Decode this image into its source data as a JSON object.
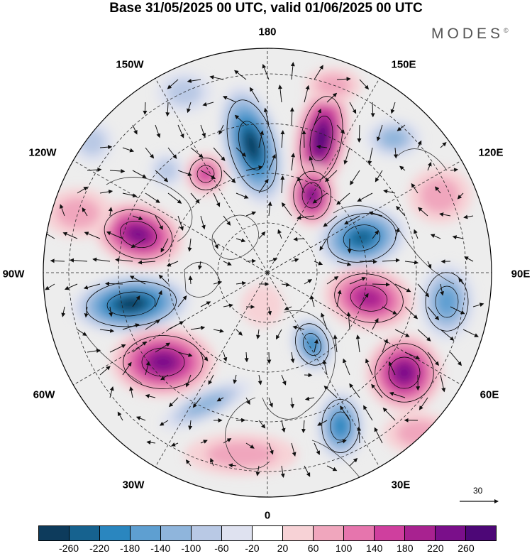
{
  "title": "Base 31/05/2025 00 UTC, valid 01/06/2025 00 UTC",
  "brand": "MODES",
  "brand_mark": "©",
  "longitude_labels": [
    "180",
    "150E",
    "120E",
    "90E",
    "60E",
    "30E",
    "0",
    "30W",
    "60W",
    "90W",
    "120W",
    "150W"
  ],
  "wind_scale": {
    "value": "30"
  },
  "colorbar": {
    "ticks": [
      "-260",
      "-220",
      "-180",
      "-140",
      "-100",
      "-60",
      "-20",
      "20",
      "60",
      "100",
      "140",
      "180",
      "220",
      "260"
    ],
    "colors": [
      "#0d3b5c",
      "#16628f",
      "#2a86bf",
      "#5e9fd1",
      "#8fb5dc",
      "#b9c9e5",
      "#dfe2f0",
      "#ffffff",
      "#f7d2d6",
      "#f0a6bd",
      "#e675ad",
      "#cf3f9e",
      "#a82290",
      "#7a0f8a",
      "#4d0777"
    ]
  },
  "colors": {
    "positive_max": "#a82290",
    "negative_max": "#0d3b5c",
    "neutral": "#ededed"
  }
}
